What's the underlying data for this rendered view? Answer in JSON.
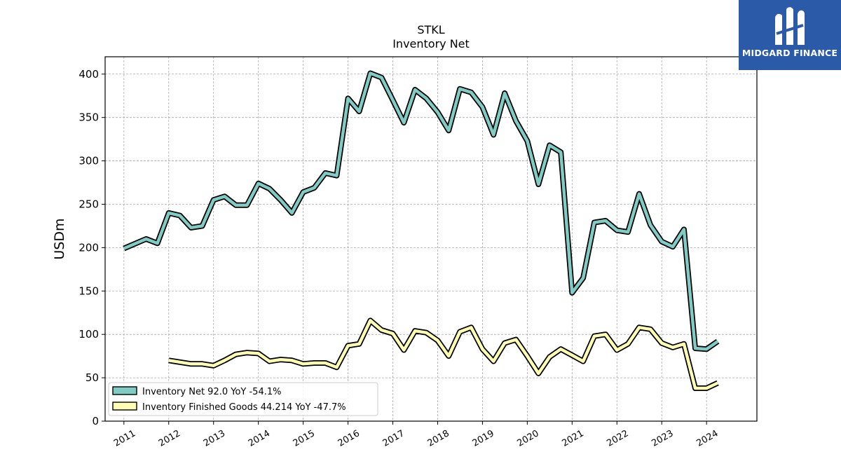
{
  "chart_data": {
    "type": "line",
    "title": "STKL",
    "subtitle": "Inventory Net",
    "xlabel": "",
    "ylabel": "USDm",
    "xlim": [
      "2010-08-01",
      "2025-02-15"
    ],
    "ylim": [
      0,
      420
    ],
    "yticks": [
      0,
      50,
      100,
      150,
      200,
      250,
      300,
      350,
      400
    ],
    "xticks": [
      "2011",
      "2012",
      "2013",
      "2014",
      "2015",
      "2016",
      "2017",
      "2018",
      "2019",
      "2020",
      "2021",
      "2022",
      "2023",
      "2024"
    ],
    "grid": true,
    "legend_position": "lower-left",
    "series": [
      {
        "name": "Inventory Net",
        "legend_label": "Inventory Net  92.0 YoY -54.1%",
        "color": "#80cbc4",
        "points": [
          [
            "2011-01-01",
            199
          ],
          [
            "2011-07-01",
            210
          ],
          [
            "2011-10-01",
            205
          ],
          [
            "2012-01-01",
            240
          ],
          [
            "2012-04-01",
            237
          ],
          [
            "2012-07-01",
            223
          ],
          [
            "2012-10-01",
            225
          ],
          [
            "2013-01-01",
            255
          ],
          [
            "2013-04-01",
            259
          ],
          [
            "2013-07-01",
            249
          ],
          [
            "2013-10-01",
            249
          ],
          [
            "2014-01-01",
            274
          ],
          [
            "2014-04-01",
            268
          ],
          [
            "2014-07-01",
            255
          ],
          [
            "2014-10-01",
            240
          ],
          [
            "2015-01-01",
            264
          ],
          [
            "2015-04-01",
            269
          ],
          [
            "2015-07-01",
            286
          ],
          [
            "2015-10-01",
            283
          ],
          [
            "2016-01-01",
            372
          ],
          [
            "2016-04-01",
            357
          ],
          [
            "2016-07-01",
            401
          ],
          [
            "2016-10-01",
            396
          ],
          [
            "2017-01-01",
            370
          ],
          [
            "2017-04-01",
            344
          ],
          [
            "2017-07-01",
            382
          ],
          [
            "2017-10-01",
            372
          ],
          [
            "2018-01-01",
            356
          ],
          [
            "2018-04-01",
            335
          ],
          [
            "2018-07-01",
            383
          ],
          [
            "2018-10-01",
            379
          ],
          [
            "2019-01-01",
            362
          ],
          [
            "2019-04-01",
            330
          ],
          [
            "2019-07-01",
            378
          ],
          [
            "2019-10-01",
            346
          ],
          [
            "2020-01-01",
            323
          ],
          [
            "2020-04-01",
            273
          ],
          [
            "2020-07-01",
            318
          ],
          [
            "2020-10-01",
            310
          ],
          [
            "2021-01-01",
            148
          ],
          [
            "2021-04-01",
            165
          ],
          [
            "2021-07-01",
            229
          ],
          [
            "2021-10-01",
            231
          ],
          [
            "2022-01-01",
            220
          ],
          [
            "2022-04-01",
            218
          ],
          [
            "2022-07-01",
            262
          ],
          [
            "2022-10-01",
            226
          ],
          [
            "2023-01-01",
            207
          ],
          [
            "2023-04-01",
            201
          ],
          [
            "2023-07-01",
            221
          ],
          [
            "2023-10-01",
            84
          ],
          [
            "2024-01-01",
            83
          ],
          [
            "2024-04-01",
            92
          ]
        ]
      },
      {
        "name": "Inventory Finished Goods",
        "legend_label": "Inventory Finished Goods  44.214 YoY -47.7%",
        "color": "#ffffb3",
        "points": [
          [
            "2012-01-01",
            70
          ],
          [
            "2012-04-01",
            68
          ],
          [
            "2012-07-01",
            66
          ],
          [
            "2012-10-01",
            66
          ],
          [
            "2013-01-01",
            64
          ],
          [
            "2013-04-01",
            70
          ],
          [
            "2013-07-01",
            77
          ],
          [
            "2013-10-01",
            79
          ],
          [
            "2014-01-01",
            78
          ],
          [
            "2014-04-01",
            69
          ],
          [
            "2014-07-01",
            71
          ],
          [
            "2014-10-01",
            70
          ],
          [
            "2015-01-01",
            66
          ],
          [
            "2015-04-01",
            67
          ],
          [
            "2015-07-01",
            67
          ],
          [
            "2015-10-01",
            62
          ],
          [
            "2016-01-01",
            87
          ],
          [
            "2016-04-01",
            89
          ],
          [
            "2016-07-01",
            116
          ],
          [
            "2016-10-01",
            105
          ],
          [
            "2017-01-01",
            101
          ],
          [
            "2017-04-01",
            82
          ],
          [
            "2017-07-01",
            104
          ],
          [
            "2017-10-01",
            102
          ],
          [
            "2018-01-01",
            93
          ],
          [
            "2018-04-01",
            75
          ],
          [
            "2018-07-01",
            103
          ],
          [
            "2018-10-01",
            108
          ],
          [
            "2019-01-01",
            83
          ],
          [
            "2019-04-01",
            69
          ],
          [
            "2019-07-01",
            90
          ],
          [
            "2019-10-01",
            94
          ],
          [
            "2020-01-01",
            75
          ],
          [
            "2020-04-01",
            55
          ],
          [
            "2020-07-01",
            74
          ],
          [
            "2020-10-01",
            83
          ],
          [
            "2021-01-01",
            76
          ],
          [
            "2021-04-01",
            69
          ],
          [
            "2021-07-01",
            98
          ],
          [
            "2021-10-01",
            100
          ],
          [
            "2022-01-01",
            82
          ],
          [
            "2022-04-01",
            89
          ],
          [
            "2022-07-01",
            108
          ],
          [
            "2022-10-01",
            106
          ],
          [
            "2023-01-01",
            90
          ],
          [
            "2023-04-01",
            85
          ],
          [
            "2023-07-01",
            89
          ],
          [
            "2023-10-01",
            38
          ],
          [
            "2024-01-01",
            38
          ],
          [
            "2024-04-01",
            44
          ]
        ]
      }
    ]
  },
  "branding": {
    "logo_text": "MIDGARD FINANCE",
    "logo_color": "#2b5aa8"
  }
}
